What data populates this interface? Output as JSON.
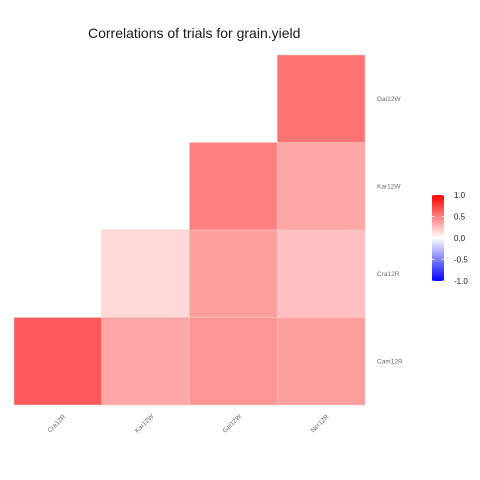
{
  "chart_data": {
    "type": "heatmap",
    "title": "Correlations of trials for grain.yield",
    "x_categories": [
      "Cra12R",
      "Kar12W",
      "Gai12W",
      "Ner12R"
    ],
    "y_categories": [
      "Cam12R",
      "Cra12R",
      "Kar12W",
      "Gai12W"
    ],
    "cells": [
      {
        "x": "Cra12R",
        "y": "Cam12R",
        "value": 0.65
      },
      {
        "x": "Kar12W",
        "y": "Cam12R",
        "value": 0.35
      },
      {
        "x": "Gai12W",
        "y": "Cam12R",
        "value": 0.42
      },
      {
        "x": "Ner12R",
        "y": "Cam12R",
        "value": 0.38
      },
      {
        "x": "Kar12W",
        "y": "Cra12R",
        "value": 0.15
      },
      {
        "x": "Gai12W",
        "y": "Cra12R",
        "value": 0.38
      },
      {
        "x": "Ner12R",
        "y": "Cra12R",
        "value": 0.25
      },
      {
        "x": "Gai12W",
        "y": "Kar12W",
        "value": 0.5
      },
      {
        "x": "Ner12R",
        "y": "Kar12W",
        "value": 0.35
      },
      {
        "x": "Ner12R",
        "y": "Gai12W",
        "value": 0.55
      }
    ],
    "legend": {
      "position": "right",
      "min": -1.0,
      "max": 1.0,
      "ticks": [
        1.0,
        0.5,
        0.0,
        -0.5,
        -1.0
      ],
      "tick_labels": [
        "1.0",
        "0.5",
        "0.0",
        "-0.5",
        "-1.0"
      ],
      "low_color": "#0000ff",
      "mid_color": "#ffffff",
      "high_color": "#ff0000"
    },
    "grid": false
  }
}
